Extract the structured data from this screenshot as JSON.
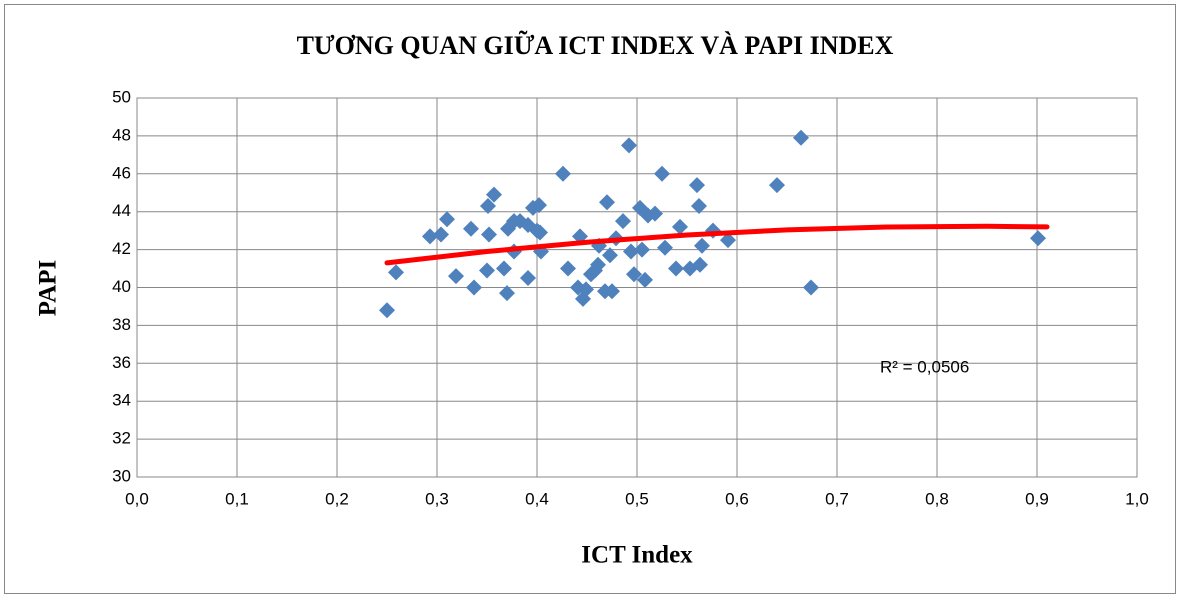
{
  "chart_data": {
    "type": "scatter",
    "title": "TƯƠNG QUAN GIỮA ICT INDEX VÀ PAPI INDEX",
    "x_label": "ICT Index",
    "y_label": "PAPI",
    "annotation": "R² = 0,0506",
    "xlim": [
      0,
      1
    ],
    "ylim": [
      30,
      50
    ],
    "xticks": [
      {
        "value": 0,
        "label": "0,0"
      },
      {
        "value": 0.1,
        "label": "0,1"
      },
      {
        "value": 0.2,
        "label": "0,2"
      },
      {
        "value": 0.3,
        "label": "0,3"
      },
      {
        "value": 0.4,
        "label": "0,4"
      },
      {
        "value": 0.5,
        "label": "0,5"
      },
      {
        "value": 0.6,
        "label": "0,6"
      },
      {
        "value": 0.7,
        "label": "0,7"
      },
      {
        "value": 0.8,
        "label": "0,8"
      },
      {
        "value": 0.9,
        "label": "0,9"
      },
      {
        "value": 1,
        "label": "1,0"
      }
    ],
    "yticks": [
      30,
      32,
      34,
      36,
      38,
      40,
      42,
      44,
      46,
      48,
      50
    ],
    "grid": true,
    "series": [
      {
        "color": "#4f81bd",
        "x": [
          0.25,
          0.259,
          0.293,
          0.304,
          0.31,
          0.319,
          0.334,
          0.337,
          0.351,
          0.352,
          0.35,
          0.357,
          0.367,
          0.37,
          0.371,
          0.377,
          0.377,
          0.383,
          0.391,
          0.391,
          0.396,
          0.4,
          0.402,
          0.403,
          0.404,
          0.426,
          0.431,
          0.441,
          0.443,
          0.446,
          0.449,
          0.454,
          0.458,
          0.461,
          0.462,
          0.468,
          0.47,
          0.473,
          0.475,
          0.479,
          0.486,
          0.492,
          0.494,
          0.497,
          0.503,
          0.505,
          0.508,
          0.511,
          0.518,
          0.525,
          0.528,
          0.539,
          0.543,
          0.553,
          0.56,
          0.562,
          0.563,
          0.565,
          0.576,
          0.591,
          0.64,
          0.664,
          0.674,
          0.901
        ],
        "values": [
          38.8,
          40.8,
          42.7,
          42.8,
          43.6,
          40.6,
          43.1,
          40.0,
          44.3,
          42.8,
          40.9,
          44.9,
          41.0,
          39.7,
          43.1,
          43.5,
          41.9,
          43.5,
          43.3,
          40.5,
          44.2,
          43.0,
          44.35,
          42.9,
          41.9,
          46.0,
          41.0,
          40.0,
          42.7,
          39.4,
          39.9,
          40.7,
          40.9,
          41.2,
          42.2,
          39.8,
          44.5,
          41.7,
          39.8,
          42.6,
          43.5,
          47.5,
          41.9,
          40.7,
          44.2,
          42.0,
          40.4,
          43.8,
          43.9,
          46.0,
          42.1,
          41.0,
          43.2,
          41.0,
          45.4,
          44.3,
          41.2,
          42.2,
          43.0,
          42.5,
          45.4,
          47.9,
          40.0,
          42.6
        ]
      }
    ],
    "trendline": {
      "color": "#ff0000",
      "x": [
        0.25,
        0.35,
        0.45,
        0.55,
        0.65,
        0.75,
        0.85,
        0.91
      ],
      "values": [
        41.3,
        41.9,
        42.39,
        42.77,
        43.04,
        43.19,
        43.23,
        43.2
      ]
    }
  }
}
